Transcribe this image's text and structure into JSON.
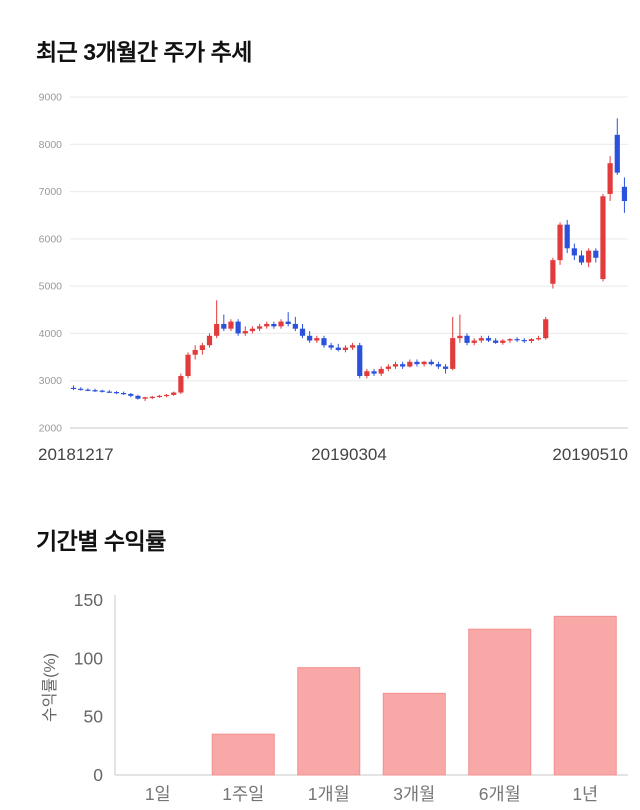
{
  "page": {
    "background": "#ffffff"
  },
  "chart_data": [
    {
      "type": "candlestick",
      "title": "최근 3개월간 주가 추세",
      "ylim": [
        2000,
        9000
      ],
      "yticks": [
        2000,
        3000,
        4000,
        5000,
        6000,
        7000,
        8000,
        9000
      ],
      "x_axis_labels": [
        "20181217",
        "20190304",
        "20190510"
      ],
      "grid": true,
      "colors": {
        "up": "#e23b3b",
        "down": "#2b52dd",
        "grid": "#e9e9e9",
        "axis": "#c9c9c9",
        "tick_text": "#999999",
        "x_label_text": "#444444"
      },
      "candles_ohlc": [
        [
          2850,
          2900,
          2800,
          2830
        ],
        [
          2830,
          2860,
          2790,
          2810
        ],
        [
          2810,
          2840,
          2780,
          2800
        ],
        [
          2800,
          2830,
          2760,
          2780
        ],
        [
          2790,
          2810,
          2750,
          2770
        ],
        [
          2770,
          2800,
          2740,
          2760
        ],
        [
          2760,
          2780,
          2720,
          2740
        ],
        [
          2740,
          2770,
          2700,
          2720
        ],
        [
          2720,
          2740,
          2650,
          2680
        ],
        [
          2680,
          2700,
          2600,
          2620
        ],
        [
          2620,
          2660,
          2570,
          2650
        ],
        [
          2650,
          2680,
          2610,
          2660
        ],
        [
          2660,
          2700,
          2640,
          2680
        ],
        [
          2680,
          2720,
          2650,
          2700
        ],
        [
          2700,
          2770,
          2680,
          2750
        ],
        [
          2750,
          3150,
          2720,
          3100
        ],
        [
          3100,
          3600,
          3050,
          3550
        ],
        [
          3550,
          3750,
          3450,
          3650
        ],
        [
          3650,
          3800,
          3550,
          3750
        ],
        [
          3750,
          4000,
          3700,
          3950
        ],
        [
          3950,
          4700,
          3900,
          4200
        ],
        [
          4200,
          4400,
          4050,
          4100
        ],
        [
          4100,
          4300,
          4050,
          4250
        ],
        [
          4250,
          4300,
          3950,
          4000
        ],
        [
          4000,
          4150,
          3950,
          4050
        ],
        [
          4050,
          4150,
          4000,
          4100
        ],
        [
          4100,
          4200,
          4050,
          4150
        ],
        [
          4150,
          4250,
          4100,
          4200
        ],
        [
          4200,
          4250,
          4100,
          4150
        ],
        [
          4150,
          4300,
          4100,
          4250
        ],
        [
          4250,
          4450,
          4150,
          4200
        ],
        [
          4200,
          4350,
          4050,
          4100
        ],
        [
          4100,
          4200,
          3900,
          3950
        ],
        [
          3950,
          4050,
          3800,
          3850
        ],
        [
          3850,
          3950,
          3800,
          3900
        ],
        [
          3900,
          3950,
          3700,
          3750
        ],
        [
          3750,
          3800,
          3650,
          3700
        ],
        [
          3700,
          3780,
          3620,
          3650
        ],
        [
          3650,
          3750,
          3600,
          3700
        ],
        [
          3700,
          3800,
          3650,
          3750
        ],
        [
          3750,
          3800,
          3050,
          3100
        ],
        [
          3100,
          3250,
          3050,
          3200
        ],
        [
          3200,
          3250,
          3100,
          3150
        ],
        [
          3150,
          3300,
          3100,
          3250
        ],
        [
          3250,
          3350,
          3200,
          3300
        ],
        [
          3300,
          3400,
          3250,
          3350
        ],
        [
          3350,
          3400,
          3250,
          3300
        ],
        [
          3300,
          3450,
          3280,
          3400
        ],
        [
          3400,
          3450,
          3300,
          3350
        ],
        [
          3350,
          3420,
          3300,
          3400
        ],
        [
          3400,
          3450,
          3320,
          3350
        ],
        [
          3350,
          3400,
          3250,
          3300
        ],
        [
          3300,
          3350,
          3150,
          3250
        ],
        [
          3250,
          4350,
          3220,
          3900
        ],
        [
          3900,
          4400,
          3800,
          3950
        ],
        [
          3950,
          4000,
          3750,
          3800
        ],
        [
          3800,
          3900,
          3750,
          3850
        ],
        [
          3850,
          3950,
          3800,
          3900
        ],
        [
          3900,
          3950,
          3820,
          3850
        ],
        [
          3850,
          3900,
          3780,
          3800
        ],
        [
          3800,
          3880,
          3760,
          3850
        ],
        [
          3850,
          3900,
          3800,
          3880
        ],
        [
          3880,
          3920,
          3820,
          3860
        ],
        [
          3860,
          3900,
          3800,
          3840
        ],
        [
          3840,
          3900,
          3800,
          3880
        ],
        [
          3880,
          3950,
          3850,
          3900
        ],
        [
          3900,
          4350,
          3870,
          4300
        ],
        [
          5050,
          5600,
          4950,
          5550
        ],
        [
          5550,
          6350,
          5450,
          6300
        ],
        [
          6300,
          6400,
          5700,
          5800
        ],
        [
          5800,
          5900,
          5550,
          5650
        ],
        [
          5650,
          5750,
          5450,
          5500
        ],
        [
          5500,
          5800,
          5400,
          5750
        ],
        [
          5750,
          5800,
          5500,
          5600
        ],
        [
          5150,
          6950,
          5100,
          6900
        ],
        [
          6950,
          7750,
          6800,
          7600
        ],
        [
          8200,
          8550,
          7350,
          7400
        ],
        [
          7100,
          7300,
          6550,
          6800
        ]
      ]
    },
    {
      "type": "bar",
      "title": "기간별 수익률",
      "ylabel": "수익률(%)",
      "categories": [
        "1일",
        "1주일",
        "1개월",
        "3개월",
        "6개월",
        "1년"
      ],
      "values": [
        0,
        35,
        92,
        70,
        125,
        136
      ],
      "ylim": [
        0,
        150
      ],
      "yticks": [
        0,
        50,
        100,
        150
      ],
      "grid": false,
      "legend": null,
      "colors": {
        "bar_fill": "#f9a8a8",
        "bar_stroke": "#f38f8f",
        "axis": "#c9c9c9",
        "tick_text": "#666666",
        "label_text": "#757575"
      }
    }
  ]
}
